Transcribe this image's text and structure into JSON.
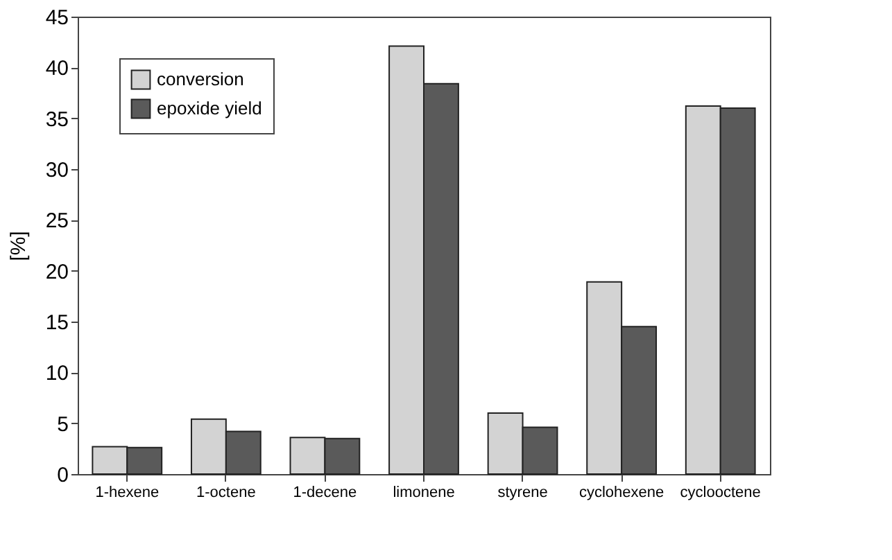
{
  "chart_data": {
    "type": "bar",
    "ylabel": "[%]",
    "categories": [
      "1-hexene",
      "1-octene",
      "1-decene",
      "limonene",
      "styrene",
      "cyclohexene",
      "cyclooctene"
    ],
    "series": [
      {
        "name": "conversion",
        "color": "#d3d3d3",
        "values": [
          2.7,
          5.4,
          3.6,
          42.1,
          6.0,
          18.9,
          36.2
        ]
      },
      {
        "name": "epoxide yield",
        "color": "#5a5a5a",
        "values": [
          2.6,
          4.2,
          3.5,
          38.4,
          4.6,
          14.5,
          36.0
        ]
      }
    ],
    "ylim": [
      0,
      45
    ],
    "yticks": [
      0,
      5,
      10,
      15,
      20,
      25,
      30,
      35,
      40,
      45
    ],
    "grid": false,
    "legend": "top left"
  }
}
